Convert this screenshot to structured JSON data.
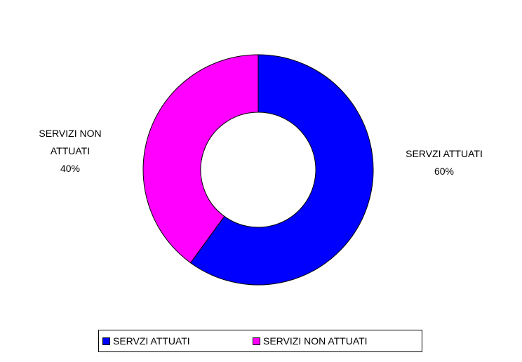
{
  "chart_data": {
    "type": "donut",
    "categories": [
      "SERVZI ATTUATI",
      "SERVIZI NON ATTUATI"
    ],
    "values": [
      60,
      40
    ],
    "value_labels": [
      "60%",
      "40%"
    ],
    "colors": [
      "#0000ff",
      "#ff00ff"
    ],
    "legend": "bottom"
  }
}
